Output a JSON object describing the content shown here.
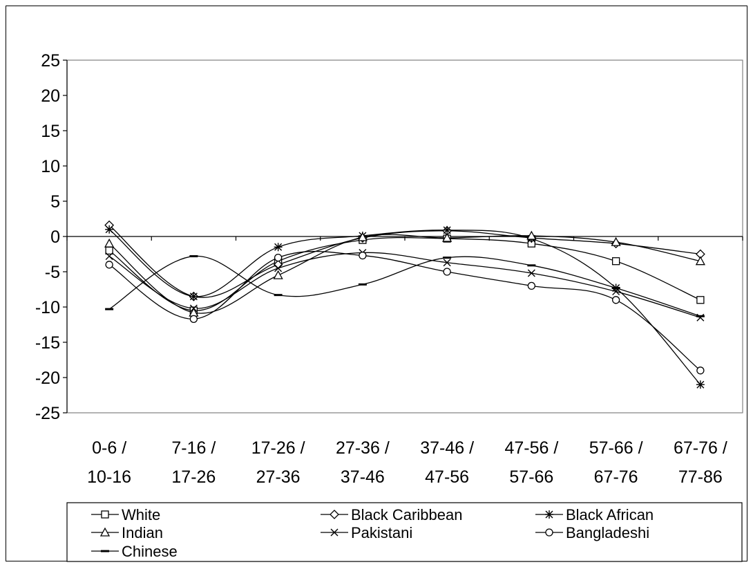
{
  "chart_data": {
    "type": "line",
    "title": "",
    "xlabel": "",
    "ylabel": "",
    "ylim": [
      -25,
      25
    ],
    "yticks": [
      25,
      20,
      15,
      10,
      5,
      0,
      -5,
      -10,
      -15,
      -20,
      -25
    ],
    "categories": [
      [
        "0-6 /",
        "10-16"
      ],
      [
        "7-16 /",
        "17-26"
      ],
      [
        "17-26 /",
        "27-36"
      ],
      [
        "27-36 /",
        "37-46"
      ],
      [
        "37-46 /",
        "47-56"
      ],
      [
        "47-56 /",
        "57-66"
      ],
      [
        "57-66 /",
        "67-76"
      ],
      [
        "67-76 /",
        "77-86"
      ]
    ],
    "grid": false,
    "legend_position": "bottom",
    "series": [
      {
        "name": "White",
        "marker": "square",
        "values": [
          -2,
          -10.5,
          -3.5,
          -0.5,
          -0.3,
          -1,
          -3.5,
          -9
        ]
      },
      {
        "name": "Black Caribbean",
        "marker": "diamond",
        "values": [
          1.6,
          -8.5,
          -4,
          -0.2,
          0.8,
          -0.2,
          -1,
          -2.5
        ]
      },
      {
        "name": "Black African",
        "marker": "asterisk",
        "values": [
          1,
          -8.5,
          -1.5,
          0.1,
          0.9,
          -0.3,
          -7.3,
          -21
        ]
      },
      {
        "name": "Indian",
        "marker": "triangle",
        "values": [
          -1,
          -10.8,
          -5.5,
          -0.1,
          -0.2,
          0.1,
          -0.8,
          -3.5
        ]
      },
      {
        "name": "Pakistani",
        "marker": "x",
        "values": [
          -2.8,
          -10.2,
          -4.5,
          -2.3,
          -3.7,
          -5.2,
          -7.8,
          -11.5
        ]
      },
      {
        "name": "Bangladeshi",
        "marker": "circle",
        "values": [
          -4,
          -11.7,
          -3,
          -2.7,
          -5,
          -7,
          -9,
          -19
        ]
      },
      {
        "name": "Chinese",
        "marker": "dash",
        "values": [
          -10.3,
          -2.8,
          -8.3,
          -6.8,
          -3,
          -4.1,
          -7.3,
          -11.3
        ]
      }
    ]
  }
}
